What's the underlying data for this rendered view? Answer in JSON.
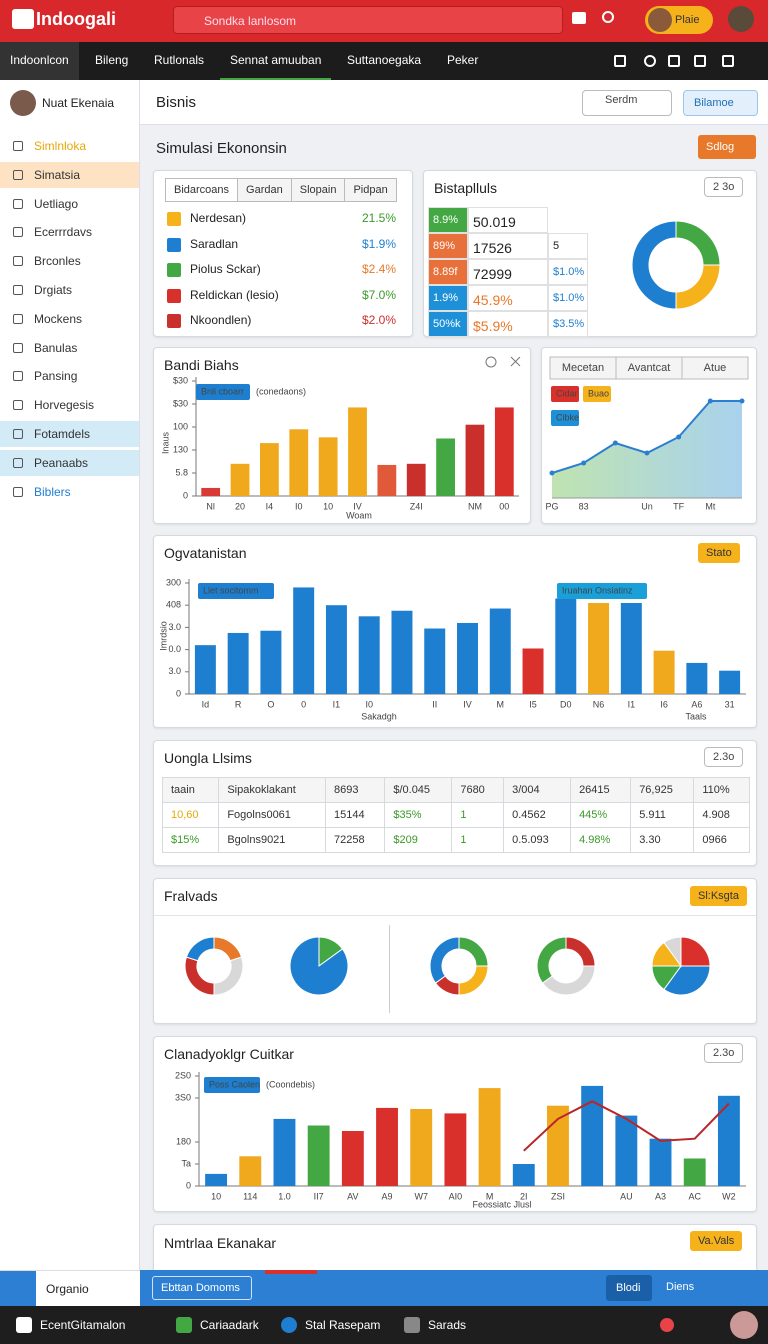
{
  "header": {
    "logo": "Indoogali",
    "search": "Sondka lanlosom",
    "user_button": "Plaie"
  },
  "nav": {
    "tabs": [
      "Indoonlcon",
      "Bileng",
      "Rutlonals",
      "Sennat amuuban",
      "Suttanoegaka",
      "Peker"
    ]
  },
  "sidebar": {
    "user": "Nuat Ekenaia",
    "items": [
      "Simlnloka",
      "Simatsia",
      "Uetliago",
      "Ecerrrdavs",
      "Brconles",
      "Drgiats",
      "Mockens",
      "Banulas",
      "Pansing",
      "Horvegesis",
      "Fotamdels",
      "Peanaabs",
      "Biblers"
    ]
  },
  "topbar": {
    "title": "Bisnis",
    "select": "Serdm",
    "button": "Bilamoe"
  },
  "section": {
    "title": "Simulasi Ekononsin",
    "button": "Sdlog"
  },
  "card1": {
    "tabs": [
      "Bidarcoans",
      "Gardan",
      "Slopain",
      "Pidpan"
    ],
    "rows": [
      {
        "label": "Nerdesan)",
        "value": "21.5%"
      },
      {
        "label": "Saradlan",
        "value": "$1.9%"
      },
      {
        "label": "Piolus Sckar)",
        "value": "$2.4%"
      },
      {
        "label": "Reldickan (lesio)",
        "value": "$7.0%"
      },
      {
        "label": "Nkoondlen)",
        "value": "$2.0%"
      }
    ]
  },
  "card2": {
    "title": "Bistaplluls",
    "select": "2 3o",
    "grid": [
      [
        "8.9%",
        "50.019",
        ""
      ],
      [
        "89%",
        "17526",
        "5"
      ],
      [
        "8.89f",
        "72999",
        "$1.0%"
      ],
      [
        "1.9%",
        "45.9%",
        "$1.0%"
      ],
      [
        "50%k",
        "$5.9%",
        "$3.5%"
      ]
    ]
  },
  "table": {
    "title": "Uongla Llsims",
    "select": "2.3o",
    "rows": [
      [
        "taain",
        "Sipakoklakant",
        "8693",
        "$/0.045",
        "7680",
        "3/004",
        "26415",
        "76,925",
        "110%"
      ],
      [
        "10,60",
        "Fogolns0061",
        "15144",
        "$35%",
        "1",
        "0.4562",
        "445%",
        "5.911",
        "4.908"
      ],
      [
        "$15%",
        "Bgolns9021",
        "72258",
        "$209",
        "1",
        "0.5.093",
        "4.98%",
        "3.30",
        "0966"
      ]
    ]
  },
  "pies_panel": {
    "title": "Fralvads",
    "button": "Sl:Ksgta"
  },
  "last": {
    "title": "Nmtrlaa Ekanakar",
    "button": "Va.Vals"
  },
  "bottom": {
    "left": "Organio",
    "chip": "Ebttan Domoms",
    "buttons": [
      "Blodi",
      "Diens"
    ]
  },
  "taskbar": {
    "items": [
      "EcentGitamalon",
      "Cariaadark",
      "Stal Rasepam",
      "Sarads"
    ]
  },
  "chart_data": [
    {
      "type": "bar",
      "title": "Bandi Biahs",
      "legend": "Bnii cboarr",
      "legend_note": "(conedaons)",
      "ylabel": "Inaus",
      "xlabel": "Woam",
      "categories": [
        "Nl",
        "20",
        "I4",
        "I0",
        "10",
        "IV",
        null,
        "Z4I",
        null,
        "NM",
        "00"
      ],
      "values": [
        7,
        28,
        46,
        58,
        51,
        77,
        27,
        28,
        50,
        62,
        77
      ],
      "colors": [
        "#d93a35",
        "#f0a81c",
        "#f0a81c",
        "#f0a81c",
        "#f0a81c",
        "#f0a81c",
        "#e05a3a",
        "#c9302c",
        "#43a843",
        "#c9302c",
        "#d9302c"
      ],
      "ylim": [
        0,
        100
      ],
      "yticks": [
        0,
        {
          "value": 20,
          "label": "5.8"
        },
        {
          "value": 40,
          "label": "130"
        },
        {
          "value": 60,
          "label": "100"
        },
        {
          "value": 80,
          "label": "$30"
        },
        {
          "value": 100,
          "label": "$30"
        }
      ],
      "grid": false
    },
    {
      "type": "line",
      "tabs": [
        "Mecetan",
        "Avantcat",
        "Atue"
      ],
      "legend": [
        "Cidar",
        "Buao",
        "Cibke"
      ],
      "categories": [
        "PG",
        "83",
        null,
        "Un",
        "TF",
        "Mt",
        null
      ],
      "values": [
        25,
        35,
        55,
        45,
        61,
        97,
        97
      ],
      "color": "#2c7fd0",
      "ylim": [
        0,
        100
      ]
    },
    {
      "type": "bar",
      "title": "Ogvatanistan",
      "button": "Stato",
      "legend": [
        "Llet socitomm",
        "Iruahan Onsiatinz"
      ],
      "xlabel": "Sakadgh",
      "xlabel2": "Taals",
      "ylabel": "Imrdsio",
      "categories": [
        "Id",
        "R",
        "O",
        "0",
        "I1",
        "I0",
        null,
        "II",
        "IV",
        "M",
        "I5",
        "D0",
        "N6",
        "I1",
        "I6",
        "A6",
        "31"
      ],
      "values": [
        44,
        55,
        57,
        96,
        80,
        70,
        75,
        59,
        64,
        77,
        41,
        86,
        82,
        82,
        39,
        28,
        21
      ],
      "colors": [
        "#1e7fd0",
        "#1e7fd0",
        "#1e7fd0",
        "#1e7fd0",
        "#1e7fd0",
        "#1e7fd0",
        "#1e7fd0",
        "#1e7fd0",
        "#1e7fd0",
        "#1e7fd0",
        "#d9302c",
        "#1e7fd0",
        "#f0a81c",
        "#1e7fd0",
        "#f0a81c",
        "#1e7fd0",
        "#1e7fd0"
      ],
      "ylim": [
        0,
        100
      ],
      "yticks": [
        0,
        {
          "value": 20,
          "label": "3.0"
        },
        {
          "value": 40,
          "label": "0.0"
        },
        {
          "value": 60,
          "label": "3.0"
        },
        {
          "value": 80,
          "label": "408"
        },
        {
          "value": 100,
          "label": "300"
        }
      ],
      "grid": false
    },
    {
      "type": "pie",
      "values": [
        25,
        25,
        50
      ],
      "colors": [
        "#43a843",
        "#f5b21b",
        "#1e7fd0"
      ],
      "hole": true
    },
    {
      "type": "pie",
      "values": [
        20,
        30,
        30,
        20
      ],
      "colors": [
        "#e8782a",
        "#d8d8d8",
        "#c9302c",
        "#1e7fd0"
      ],
      "hole": true
    },
    {
      "type": "pie",
      "values": [
        15,
        85
      ],
      "colors": [
        "#43a843",
        "#1e7fd0"
      ],
      "hole": false
    },
    {
      "type": "pie",
      "values": [
        25,
        25,
        15,
        35
      ],
      "colors": [
        "#43a843",
        "#f5b21b",
        "#c9302c",
        "#1e7fd0"
      ],
      "hole": true
    },
    {
      "type": "pie",
      "values": [
        25,
        40,
        35
      ],
      "colors": [
        "#c9302c",
        "#d8d8d8",
        "#43a843"
      ],
      "hole": true
    },
    {
      "type": "pie",
      "values": [
        25,
        35,
        15,
        15,
        10
      ],
      "colors": [
        "#d9302c",
        "#1e7fd0",
        "#43a843",
        "#f5b21b",
        "#d8d8d8"
      ],
      "hole": false
    },
    {
      "type": "combo",
      "title": "Clanadyoklgr Cuitkar",
      "select": "2.3o",
      "legend_note": "(Coondebis)",
      "xlabel": "Feossiatc Jlusl",
      "categories": [
        "10",
        "114",
        "1.0",
        "II7",
        "AV",
        "A9",
        "W7",
        "AI0",
        "M",
        "2I",
        "ZSI",
        null,
        "AU",
        "A3",
        "AC",
        "W2"
      ],
      "series": [
        {
          "name": "Poss Caolen",
          "values": [
            11,
            27,
            61,
            55,
            50,
            71,
            70,
            66,
            89,
            20,
            73,
            91,
            64,
            43,
            25,
            82
          ],
          "colors": [
            "#1e7fd0",
            "#f0a81c",
            "#1e7fd0",
            "#43a843",
            "#d9302c",
            "#d9302c",
            "#f0a81c",
            "#d9302c",
            "#f0a81c",
            "#1e7fd0",
            "#f0a81c",
            "#1e7fd0",
            "#1e7fd0",
            "#1e7fd0",
            "#43a843",
            "#1e7fd0"
          ]
        },
        {
          "values": [
            null,
            null,
            null,
            null,
            null,
            null,
            null,
            null,
            null,
            32,
            61,
            77,
            61,
            41,
            43,
            75
          ],
          "color": "#b8262a"
        }
      ],
      "ylim": [
        0,
        100
      ],
      "yticks": [
        0,
        {
          "value": 20,
          "label": "Ta"
        },
        {
          "value": 40,
          "label": "180"
        },
        {
          "value": 80,
          "label": "3S0"
        },
        {
          "value": 100,
          "label": "2S0"
        }
      ],
      "grid": false
    }
  ]
}
